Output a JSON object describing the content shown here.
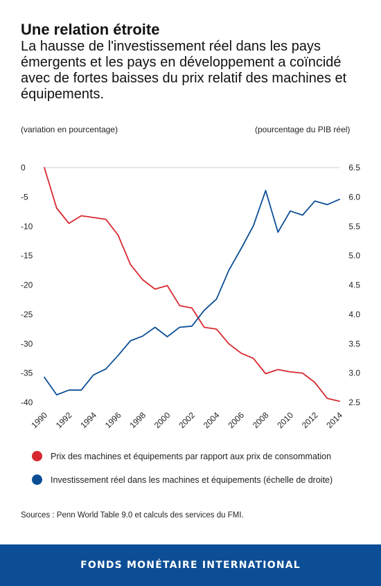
{
  "header": {
    "title": "Une relation étroite",
    "subtitle": "La hausse de l'investissement réel dans les pays émergents et les pays en développement a coïncidé avec de fortes baisses du prix relatif des machines et équipements."
  },
  "footer": {
    "source": "Sources : Penn World Table 9.0 et calculs des services du FMI.",
    "org": "FONDS MONÉTAIRE INTERNATIONAL",
    "bg_color": "#0b4e96"
  },
  "chart_data": {
    "type": "line",
    "ylabel_left": "(variation en pourcentage)",
    "ylabel_right": "(pourcentage du PIB réel)",
    "ylim_left": [
      -40,
      0
    ],
    "yticks_left": [
      "0",
      "-5",
      "-10",
      "-15",
      "-20",
      "-25",
      "-30",
      "-35",
      "-40"
    ],
    "ylim_right": [
      2.5,
      6.5
    ],
    "yticks_right": [
      "6.5",
      "6.0",
      "5.5",
      "5.0",
      "4.5",
      "4.0",
      "3.5",
      "3.0",
      "2.5"
    ],
    "x": [
      1990,
      1991,
      1992,
      1993,
      1994,
      1995,
      1996,
      1997,
      1998,
      1999,
      2000,
      2001,
      2002,
      2003,
      2004,
      2005,
      2006,
      2007,
      2008,
      2009,
      2010,
      2011,
      2012,
      2013,
      2014
    ],
    "xticks": [
      "1990",
      "1992",
      "1994",
      "1996",
      "1998",
      "2000",
      "2002",
      "2004",
      "2006",
      "2008",
      "2010",
      "2012",
      "2014"
    ],
    "series": [
      {
        "name": "Prix des machines et équipements par rapport aux prix de consommation",
        "axis": "left",
        "color": "#d7282f",
        "values": [
          0,
          -6.9,
          -9.5,
          -8.2,
          -8.5,
          -8.8,
          -11.5,
          -16.5,
          -19.1,
          -20.7,
          -20.1,
          -23.5,
          -23.9,
          -27.2,
          -27.5,
          -30.0,
          -31.6,
          -32.5,
          -35.1,
          -34.4,
          -34.8,
          -35.0,
          -36.6,
          -39.3,
          -39.8
        ]
      },
      {
        "name": "Investissement réel dans les machines et équipements (échelle de droite)",
        "axis": "right",
        "color": "#0b4e96",
        "values": [
          2.93,
          2.63,
          2.71,
          2.71,
          2.97,
          3.07,
          3.3,
          3.55,
          3.63,
          3.78,
          3.62,
          3.78,
          3.8,
          4.07,
          4.26,
          4.75,
          5.12,
          5.51,
          6.11,
          5.4,
          5.76,
          5.69,
          5.93,
          5.87,
          5.96
        ]
      }
    ],
    "grid": false
  }
}
